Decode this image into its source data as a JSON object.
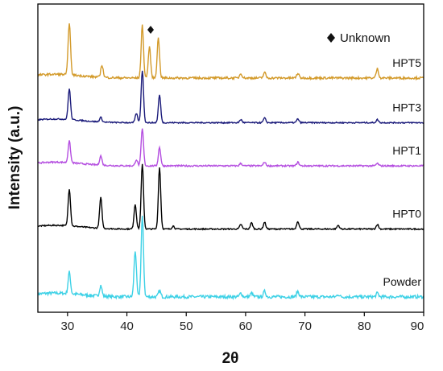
{
  "chart_data": {
    "type": "line",
    "xlabel": "2θ",
    "ylabel": "Intensity (a.u.)",
    "xlim": [
      25,
      90
    ],
    "xticks": [
      30,
      40,
      50,
      60,
      70,
      80,
      90
    ],
    "y_ticks_shown": false,
    "grid": false,
    "annotations": [
      {
        "text": "Unknown",
        "marker": "diamond",
        "marked_x": 44.0,
        "placement": "top-right"
      }
    ],
    "series": [
      {
        "name": "Powder",
        "color": "#3dd1e6",
        "baseline": 0.05,
        "noise": 0.01,
        "peaks": [
          [
            30.3,
            0.07
          ],
          [
            35.6,
            0.035
          ],
          [
            41.4,
            0.15
          ],
          [
            42.6,
            0.26
          ],
          [
            45.5,
            0.02
          ],
          [
            59.2,
            0.012
          ],
          [
            61.0,
            0.012
          ],
          [
            63.2,
            0.018
          ],
          [
            68.8,
            0.018
          ],
          [
            75.6,
            0.008
          ],
          [
            82.2,
            0.012
          ]
        ]
      },
      {
        "name": "HPT0",
        "color": "#000000",
        "baseline": 0.27,
        "noise": 0.004,
        "peaks": [
          [
            30.3,
            0.12
          ],
          [
            35.6,
            0.1
          ],
          [
            41.4,
            0.08
          ],
          [
            42.6,
            0.21
          ],
          [
            45.5,
            0.2
          ],
          [
            47.8,
            0.01
          ],
          [
            59.2,
            0.015
          ],
          [
            61.0,
            0.02
          ],
          [
            63.2,
            0.022
          ],
          [
            68.8,
            0.025
          ],
          [
            75.6,
            0.012
          ],
          [
            82.2,
            0.015
          ]
        ]
      },
      {
        "name": "HPT1",
        "color": "#b44de0",
        "baseline": 0.475,
        "noise": 0.005,
        "peaks": [
          [
            30.3,
            0.07
          ],
          [
            35.6,
            0.03
          ],
          [
            41.6,
            0.02
          ],
          [
            42.6,
            0.12
          ],
          [
            45.5,
            0.06
          ],
          [
            59.2,
            0.008
          ],
          [
            63.2,
            0.012
          ],
          [
            68.8,
            0.012
          ],
          [
            82.2,
            0.008
          ]
        ]
      },
      {
        "name": "HPT3",
        "color": "#1a1a7a",
        "baseline": 0.615,
        "noise": 0.004,
        "peaks": [
          [
            30.3,
            0.1
          ],
          [
            35.6,
            0.015
          ],
          [
            41.6,
            0.03
          ],
          [
            42.6,
            0.17
          ],
          [
            45.5,
            0.09
          ],
          [
            59.2,
            0.01
          ],
          [
            63.2,
            0.015
          ],
          [
            68.8,
            0.012
          ],
          [
            82.2,
            0.01
          ]
        ]
      },
      {
        "name": "HPT5",
        "color": "#d39a2a",
        "baseline": 0.76,
        "noise": 0.007,
        "peaks": [
          [
            30.3,
            0.17
          ],
          [
            35.8,
            0.04
          ],
          [
            42.6,
            0.17
          ],
          [
            43.8,
            0.1
          ],
          [
            45.3,
            0.13
          ],
          [
            59.2,
            0.015
          ],
          [
            63.2,
            0.018
          ],
          [
            68.8,
            0.015
          ],
          [
            82.2,
            0.03
          ]
        ]
      }
    ]
  }
}
